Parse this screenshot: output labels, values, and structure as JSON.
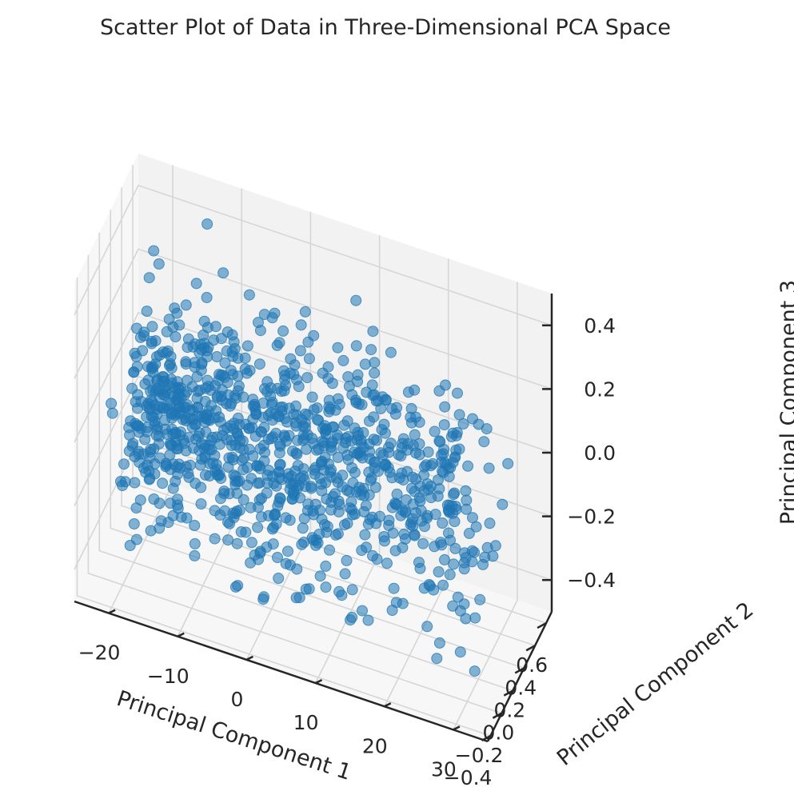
{
  "chart_data": {
    "type": "scatter",
    "title": "Scatter Plot of Data in Three-Dimensional PCA Space",
    "xlabel": "Principal Component 1",
    "ylabel": "Principal Component 2",
    "zlabel": "Principal Component 3",
    "xlim": [
      -25,
      35
    ],
    "ylim": [
      -0.45,
      0.7
    ],
    "zlim": [
      -0.5,
      0.5
    ],
    "x_ticks": [
      "−20",
      "−10",
      "0",
      "10",
      "20",
      "30"
    ],
    "y_ticks": [
      "−0.4",
      "−0.2",
      "0.0",
      "0.2",
      "0.4",
      "0.6"
    ],
    "z_ticks": [
      "−0.4",
      "−0.2",
      "0.0",
      "0.2",
      "0.4"
    ],
    "grid": true,
    "projection": "3d",
    "marker_color": "#1f77b4",
    "marker_alpha": 0.55,
    "n_points": 1000,
    "series": [
      {
        "values_description": "approximately 1000 points; PC1 roughly -20..30, PC2 roughly -0.4..0.6, PC3 roughly -0.5..0.5, denser toward negative PC1 / positive PC2",
        "points": []
      }
    ]
  }
}
